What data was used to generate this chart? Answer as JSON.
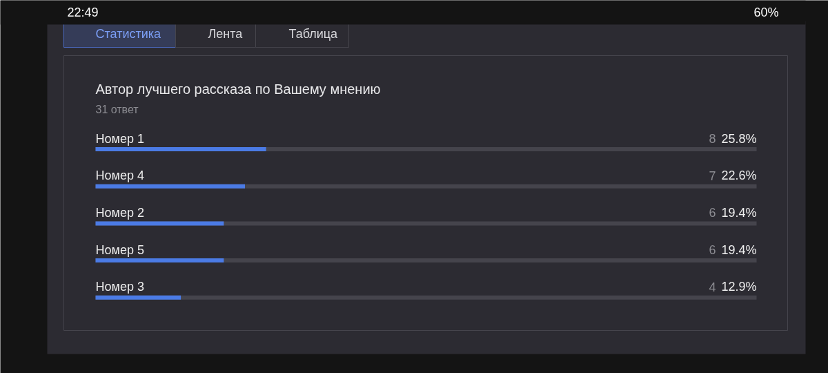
{
  "chart_data": {
    "type": "bar",
    "orientation": "horizontal",
    "title": "Автор лучшего рассказа по Вашему мнению",
    "subtitle": "31 ответ",
    "categories": [
      "Номер 1",
      "Номер 4",
      "Номер 2",
      "Номер 5",
      "Номер 3"
    ],
    "values": [
      25.8,
      22.6,
      19.4,
      19.4,
      12.9
    ],
    "value_labels": [
      "8 25.8%",
      "7 22.6%",
      "6 19.4%",
      "6 19.4%",
      "4 12.9%"
    ],
    "color": "#4b7be5",
    "xlim": [
      0,
      100
    ],
    "annotations": [
      "22:49",
      "60%",
      "Статистика",
      "Лента",
      "Таблица"
    ]
  }
}
